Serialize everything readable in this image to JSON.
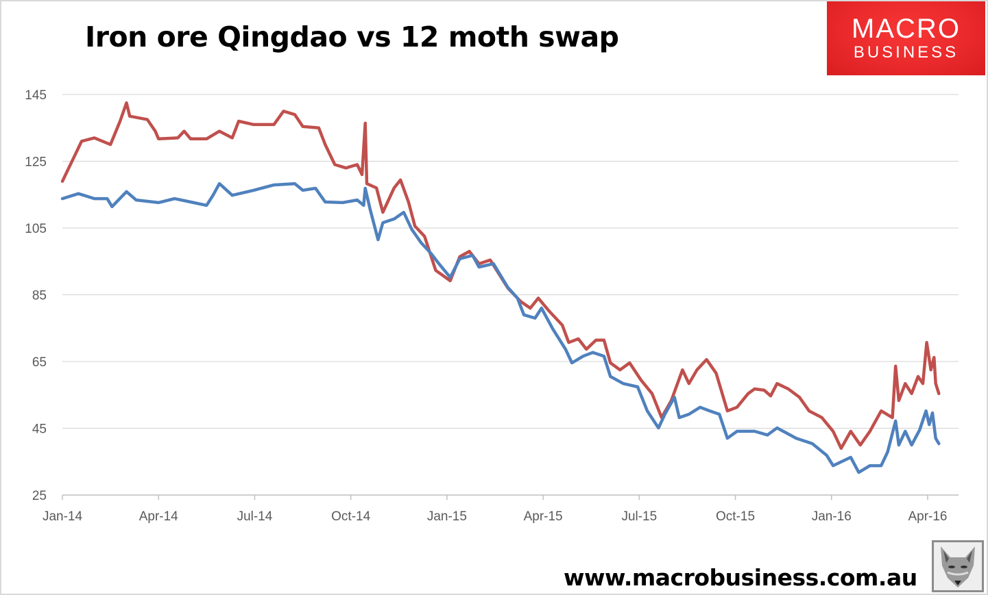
{
  "chart_data": {
    "type": "line",
    "title": "Iron ore Qingdao vs 12 moth swap",
    "xlabel": "",
    "ylabel": "",
    "x_unit": "months since Jan-14",
    "ylim": [
      25,
      145
    ],
    "y_ticks": [
      25,
      45,
      65,
      85,
      105,
      125,
      145
    ],
    "y_tick_labels": [
      "25",
      "45",
      "65",
      "85",
      "105",
      "125",
      "145"
    ],
    "x_ticks": [
      0,
      3,
      6,
      9,
      12,
      15,
      18,
      21,
      24,
      27
    ],
    "x_tick_labels": [
      "Jan-14",
      "Apr-14",
      "Jul-14",
      "Oct-14",
      "Jan-15",
      "Apr-15",
      "Jul-15",
      "Oct-15",
      "Jan-16",
      "Apr-16"
    ],
    "grid": true,
    "legend": "none",
    "series": [
      {
        "name": "Iron ore Qingdao",
        "color": "#c0504d",
        "x": [
          0,
          0.2,
          0.4,
          0.6,
          1,
          1.5,
          1.8,
          2,
          2.1,
          2.65,
          2.9,
          3,
          3.6,
          3.8,
          4,
          4.5,
          4.9,
          5.3,
          5.5,
          5.97,
          6.6,
          6.9,
          7.25,
          7.5,
          8,
          8.2,
          8.5,
          8.85,
          9.2,
          9.35,
          9.45,
          9.5,
          9.8,
          10,
          10.35,
          10.55,
          10.8,
          11,
          11.3,
          11.65,
          12.1,
          12.4,
          12.7,
          13,
          13.35,
          13.9,
          14.3,
          14.6,
          14.85,
          15.2,
          15.6,
          15.8,
          16.1,
          16.35,
          16.65,
          16.9,
          17.1,
          17.4,
          17.7,
          18.05,
          18.4,
          18.7,
          19,
          19.35,
          19.55,
          19.8,
          20.1,
          20.4,
          20.75,
          21.05,
          21.4,
          21.6,
          21.9,
          22.1,
          22.3,
          22.65,
          23,
          23.3,
          23.7,
          24.05,
          24.3,
          24.6,
          24.9,
          25.2,
          25.55,
          25.9,
          26,
          26.1,
          26.3,
          26.5,
          26.7,
          26.85,
          26.97,
          27.1,
          27.2,
          27.25,
          27.35
        ],
        "values": [
          119,
          123,
          127,
          131,
          132,
          130,
          137,
          142.5,
          138.5,
          137.5,
          134,
          131.7,
          132,
          134,
          131.7,
          131.7,
          134,
          132,
          137,
          136,
          136,
          140,
          139,
          135.4,
          135,
          130,
          124,
          123,
          124,
          121,
          136.4,
          118.3,
          117,
          109.7,
          117,
          119.4,
          112.8,
          105.6,
          102.5,
          92.3,
          89.2,
          96.4,
          98,
          94.3,
          95.4,
          87,
          83,
          81,
          84,
          80,
          75.9,
          70.7,
          71.8,
          68.7,
          71.4,
          71.4,
          64.6,
          62.5,
          64.6,
          59.5,
          55.4,
          48.2,
          53.3,
          62.5,
          58.4,
          62.5,
          65.6,
          61.5,
          50.2,
          51.3,
          55.4,
          56.8,
          56.4,
          54.7,
          58.4,
          56.8,
          54.3,
          50.2,
          48.2,
          44.1,
          39,
          44.1,
          40,
          44.1,
          50.2,
          48.2,
          63.6,
          53.3,
          58.4,
          55.4,
          60.5,
          58.4,
          70.7,
          62.5,
          66.2,
          58.4,
          55.4
        ]
      },
      {
        "name": "12 month swap",
        "color": "#4f81bd",
        "x": [
          0,
          0.5,
          1,
          1.4,
          1.55,
          2,
          2.3,
          3,
          3.5,
          4,
          4.5,
          4.7,
          4.9,
          5.3,
          5.97,
          6.6,
          7.25,
          7.5,
          7.9,
          8.2,
          8.75,
          9.2,
          9.4,
          9.45,
          9.6,
          9.85,
          10,
          10.35,
          10.65,
          10.9,
          11.2,
          11.5,
          11.75,
          12.1,
          12.4,
          12.8,
          13,
          13.45,
          13.9,
          14.2,
          14.4,
          14.75,
          14.95,
          15.3,
          15.7,
          15.9,
          16.25,
          16.55,
          16.9,
          17.1,
          17.5,
          17.95,
          18.25,
          18.6,
          18.8,
          19.1,
          19.25,
          19.55,
          19.9,
          20.2,
          20.5,
          20.75,
          21.05,
          21.6,
          22,
          22.3,
          22.9,
          23.4,
          23.85,
          24.05,
          24.6,
          24.85,
          25.2,
          25.55,
          25.75,
          26,
          26.1,
          26.3,
          26.5,
          26.75,
          26.95,
          27.05,
          27.15,
          27.25,
          27.35
        ],
        "values": [
          113.8,
          115.3,
          113.8,
          113.8,
          111.4,
          115.9,
          113.4,
          112.6,
          113.8,
          112.8,
          111.8,
          114.8,
          118.3,
          114.8,
          116.3,
          117.9,
          118.3,
          116.3,
          116.9,
          112.8,
          112.6,
          113.4,
          111.8,
          116.9,
          110.7,
          101.5,
          106.6,
          107.7,
          109.7,
          104.6,
          100.5,
          97.4,
          94.3,
          90.2,
          95.8,
          96.8,
          93.3,
          94.3,
          87.2,
          84,
          79,
          78,
          81,
          74.8,
          68.7,
          64.6,
          66.6,
          67.7,
          66.6,
          60.5,
          58.4,
          57.4,
          50.2,
          45.1,
          49.2,
          54.3,
          48.2,
          49.2,
          51.3,
          50.2,
          49.2,
          42,
          44.1,
          44.1,
          43,
          45.1,
          42,
          40.4,
          36.9,
          33.8,
          36.3,
          31.8,
          33.8,
          33.8,
          37.9,
          47.2,
          40,
          44.1,
          40,
          44.5,
          50.2,
          46.1,
          49.6,
          42,
          40.4
        ]
      }
    ]
  },
  "logo": {
    "line1": "MACRO",
    "line2": "BUSINESS"
  },
  "footer": {
    "url": "www.macrobusiness.com.au"
  }
}
